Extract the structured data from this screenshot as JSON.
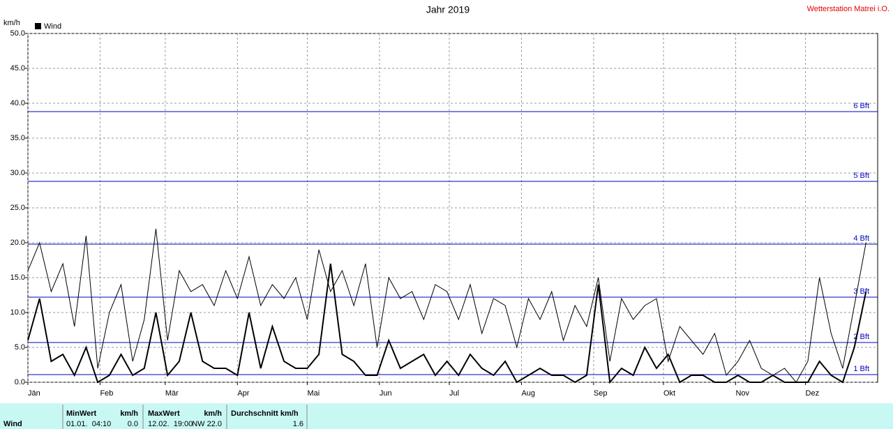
{
  "chart_data": {
    "type": "line",
    "title": "Jahr 2019",
    "station": "Wetterstation Matrei i.O.",
    "y_label": "km/h",
    "x": [
      0,
      5,
      10,
      15,
      20,
      25,
      30,
      35,
      40,
      45,
      50,
      55,
      60,
      65,
      70,
      75,
      80,
      85,
      90,
      95,
      100,
      105,
      110,
      115,
      120,
      125,
      130,
      135,
      140,
      145,
      150,
      155,
      160,
      165,
      170,
      175,
      180,
      185,
      190,
      195,
      200,
      205,
      210,
      215,
      220,
      225,
      230,
      235,
      240,
      245,
      250,
      255,
      260,
      265,
      270,
      275,
      280,
      285,
      290,
      295,
      300,
      305,
      310,
      315,
      320,
      325,
      330,
      335,
      340,
      345,
      350,
      355,
      360
    ],
    "xlim": [
      0,
      365
    ],
    "xticks": [
      {
        "value": 0,
        "label": "Jän"
      },
      {
        "value": 31,
        "label": "Feb"
      },
      {
        "value": 59,
        "label": "Mär"
      },
      {
        "value": 90,
        "label": "Apr"
      },
      {
        "value": 120,
        "label": "Mai"
      },
      {
        "value": 151,
        "label": "Jun"
      },
      {
        "value": 181,
        "label": "Jul"
      },
      {
        "value": 212,
        "label": "Aug"
      },
      {
        "value": 243,
        "label": "Sep"
      },
      {
        "value": 273,
        "label": "Okt"
      },
      {
        "value": 304,
        "label": "Nov"
      },
      {
        "value": 334,
        "label": "Dez"
      }
    ],
    "ylim": [
      0,
      50
    ],
    "yticks": [
      {
        "value": 0,
        "label": "0.0"
      },
      {
        "value": 5,
        "label": "5.0"
      },
      {
        "value": 10,
        "label": "10.0"
      },
      {
        "value": 15,
        "label": "15.0"
      },
      {
        "value": 20,
        "label": "20.0"
      },
      {
        "value": 25,
        "label": "25.0"
      },
      {
        "value": 30,
        "label": "30.0"
      },
      {
        "value": 35,
        "label": "35.0"
      },
      {
        "value": 40,
        "label": "40.0"
      },
      {
        "value": 45,
        "label": "45.0"
      },
      {
        "value": 50,
        "label": "50.0"
      }
    ],
    "grid": true,
    "series": [
      {
        "name": "Wind",
        "color": "#000000",
        "width": 2,
        "values": [
          6,
          12,
          3,
          4,
          1,
          5,
          0,
          1,
          4,
          1,
          2,
          10,
          1,
          3,
          10,
          3,
          2,
          2,
          1,
          10,
          2,
          8,
          3,
          2,
          2,
          4,
          17,
          4,
          3,
          1,
          1,
          6,
          2,
          3,
          4,
          1,
          3,
          1,
          4,
          2,
          1,
          3,
          0,
          1,
          2,
          1,
          1,
          0,
          1,
          14,
          0,
          2,
          1,
          5,
          2,
          4,
          0,
          1,
          1,
          0,
          0,
          1,
          0,
          0,
          1,
          0,
          0,
          0,
          3,
          1,
          0,
          5,
          13
        ]
      },
      {
        "color": "#000000",
        "width": 1,
        "values": [
          16,
          20,
          13,
          17,
          8,
          21,
          2,
          10,
          14,
          3,
          9,
          22,
          6,
          16,
          13,
          14,
          11,
          16,
          12,
          18,
          11,
          14,
          12,
          15,
          9,
          19,
          13,
          16,
          11,
          17,
          5,
          15,
          12,
          13,
          9,
          14,
          13,
          9,
          14,
          7,
          12,
          11,
          5,
          12,
          9,
          13,
          6,
          11,
          8,
          15,
          3,
          12,
          9,
          11,
          12,
          3,
          8,
          6,
          4,
          7,
          1,
          3,
          6,
          2,
          1,
          2,
          0,
          3,
          15,
          7,
          2,
          11,
          20
        ]
      }
    ],
    "reference_lines": [
      {
        "value": 38.8,
        "label": "6 Bft"
      },
      {
        "value": 28.8,
        "label": "5 Bft"
      },
      {
        "value": 19.8,
        "label": "4 Bft"
      },
      {
        "value": 12.2,
        "label": "3 Bft"
      },
      {
        "value": 5.7,
        "label": "2 Bft"
      },
      {
        "value": 1.1,
        "label": "1 Bft"
      }
    ],
    "reference_color": "#0000c0"
  },
  "stats_table": {
    "headers": [
      "MinWert",
      "km/h",
      "MaxWert",
      "km/h",
      "Durchschnitt km/h"
    ],
    "row": [
      "Wind",
      "01.01.  04:10",
      "0.0",
      "12.02.  19:00",
      "NW 22.0",
      "1.6"
    ]
  }
}
